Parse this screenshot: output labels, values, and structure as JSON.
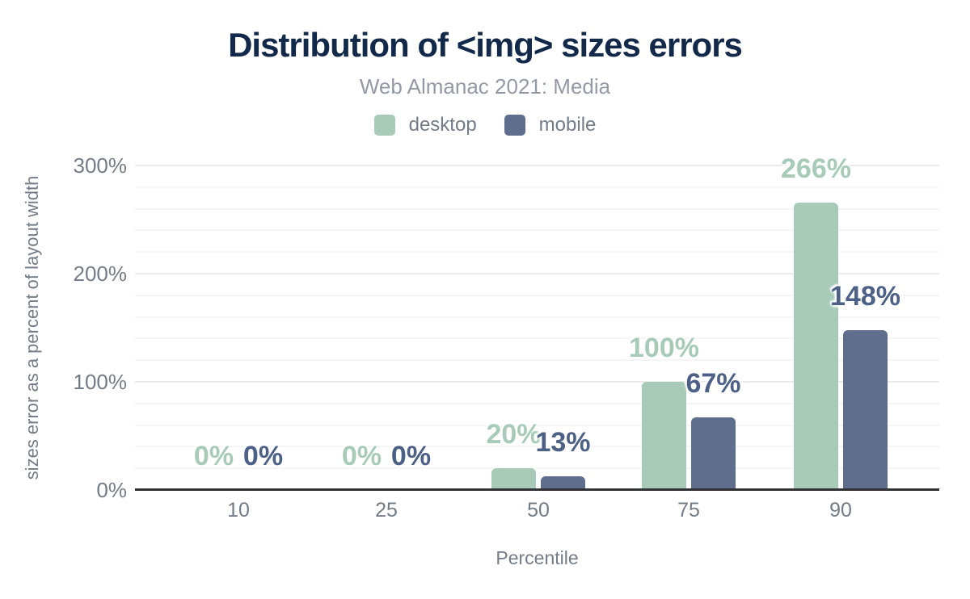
{
  "chart_data": {
    "type": "bar",
    "title": "Distribution of <img> sizes errors",
    "subtitle": "Web Almanac 2021: Media",
    "xlabel": "Percentile",
    "ylabel": "sizes error as a percent of layout width",
    "categories": [
      "10",
      "25",
      "50",
      "75",
      "90"
    ],
    "series": [
      {
        "name": "desktop",
        "color": "#a8cbb9",
        "label_color": "#a8cbb9",
        "values": [
          0,
          0,
          20,
          100,
          266
        ]
      },
      {
        "name": "mobile",
        "color": "#5f6e8c",
        "label_color": "#4d6186",
        "values": [
          0,
          0,
          13,
          67,
          148
        ]
      }
    ],
    "value_label_suffix": "%",
    "y_axis": {
      "min": 0,
      "max": 300,
      "major_step": 100,
      "minor_step": 20,
      "ticks": [
        0,
        100,
        200,
        300
      ],
      "tick_labels": [
        "0%",
        "100%",
        "200%",
        "300%"
      ]
    },
    "legend_position": "top",
    "grid": true
  },
  "colors": {
    "background": "#ffffff",
    "title": "#13294a",
    "subtitle": "#949aa3",
    "axis_text": "#747c86",
    "grid_minor": "#f5f5f5",
    "grid_major": "#ebebeb",
    "baseline": "#303234"
  }
}
